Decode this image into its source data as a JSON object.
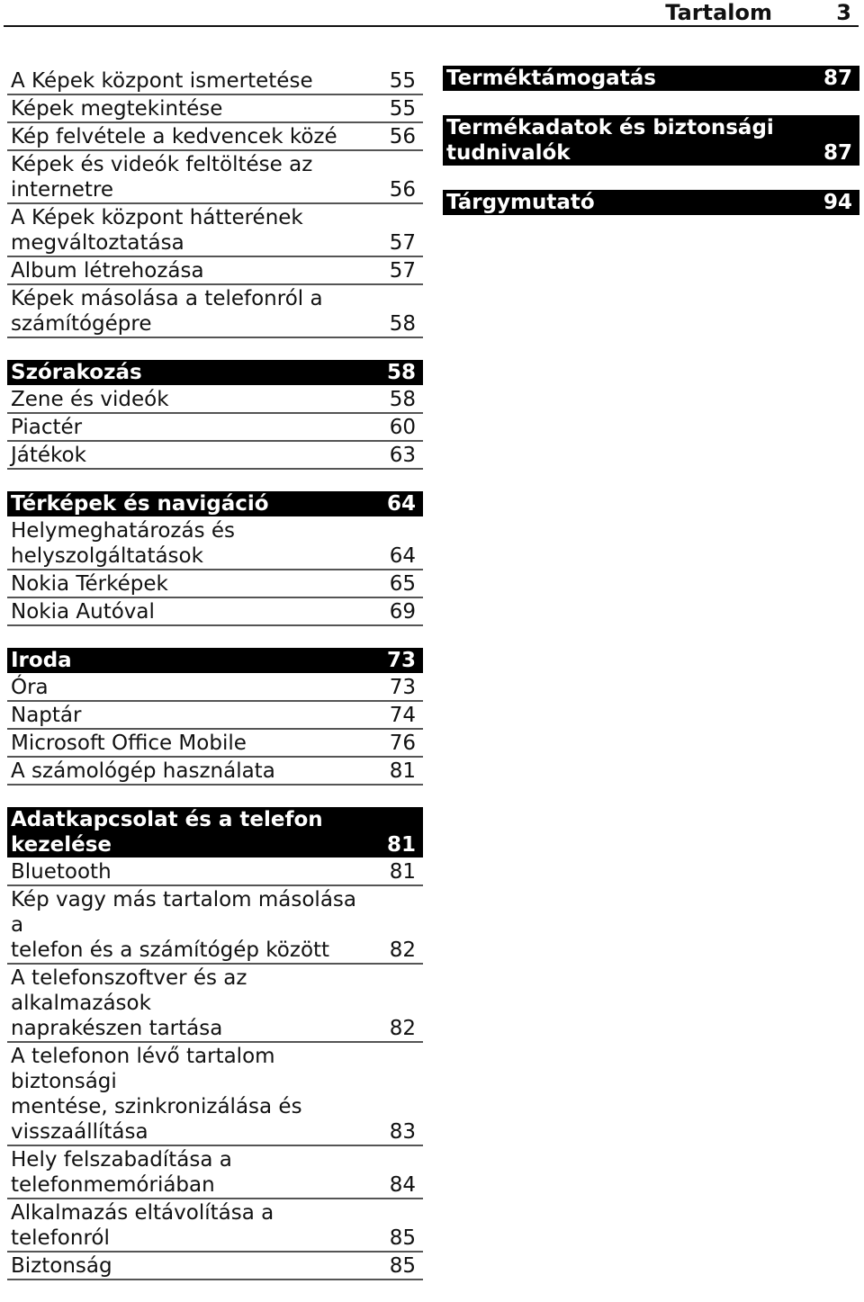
{
  "header": {
    "title": "Tartalom",
    "page": "3"
  },
  "left": {
    "intro": [
      {
        "title": "A Képek központ ismertetése",
        "page": "55"
      },
      {
        "title": "Képek megtekintése",
        "page": "55"
      },
      {
        "title": "Kép felvétele a kedvencek közé",
        "page": "56"
      },
      {
        "title": "Képek és videók feltöltése az\ninternetre",
        "page": "56"
      },
      {
        "title": "A Képek központ hátterének\nmegváltoztatása",
        "page": "57"
      },
      {
        "title": "Album létrehozása",
        "page": "57"
      },
      {
        "title": "Képek másolása a telefonról a\nszámítógépre",
        "page": "58"
      }
    ],
    "szorakozas": {
      "head": {
        "title": "Szórakozás",
        "page": "58"
      },
      "items": [
        {
          "title": "Zene és videók",
          "page": "58"
        },
        {
          "title": "Piactér",
          "page": "60"
        },
        {
          "title": "Játékok",
          "page": "63"
        }
      ]
    },
    "terkepek": {
      "head": {
        "title": "Térképek és navigáció",
        "page": "64"
      },
      "items": [
        {
          "title": "Helymeghatározás és\nhelyszolgáltatások",
          "page": "64"
        },
        {
          "title": "Nokia Térképek",
          "page": "65"
        },
        {
          "title": "Nokia Autóval",
          "page": "69"
        }
      ]
    },
    "iroda": {
      "head": {
        "title": "Iroda",
        "page": "73"
      },
      "items": [
        {
          "title": "Óra",
          "page": "73"
        },
        {
          "title": "Naptár",
          "page": "74"
        },
        {
          "title": "Microsoft Office Mobile",
          "page": "76"
        },
        {
          "title": "A számológép használata",
          "page": "81"
        }
      ]
    },
    "adatkapcsolat": {
      "head": {
        "title": "Adatkapcsolat és a telefon kezelése",
        "page": "81"
      },
      "items": [
        {
          "title": "Bluetooth",
          "page": "81"
        },
        {
          "title": "Kép vagy más tartalom másolása a\ntelefon és a számítógép között",
          "page": "82"
        },
        {
          "title": "A telefonszoftver és az alkalmazások\nnaprakészen tartása",
          "page": "82"
        },
        {
          "title": "A telefonon lévő tartalom biztonsági\nmentése, szinkronizálása és\nvisszaállítása",
          "page": "83"
        },
        {
          "title": "Hely felszabadítása a\ntelefonmemóriában",
          "page": "84"
        },
        {
          "title": "Alkalmazás eltávolítása a telefonról",
          "page": "85"
        },
        {
          "title": "Biztonság",
          "page": "85"
        }
      ]
    }
  },
  "right": [
    {
      "title": "Terméktámogatás",
      "page": "87"
    },
    {
      "title": "Termékadatok és biztonsági\ntudnivalók",
      "page": "87"
    },
    {
      "title": "Tárgymutató",
      "page": "94"
    }
  ]
}
